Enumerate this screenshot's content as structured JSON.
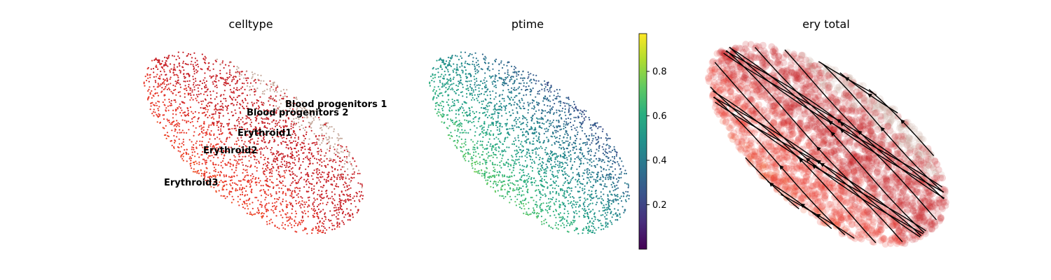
{
  "chart_data": [
    {
      "type": "scatter",
      "title": "celltype",
      "xlabel": "",
      "ylabel": "",
      "legend": "on data",
      "categories": [
        "Blood progenitors 1",
        "Blood progenitors 2",
        "Erythroid1",
        "Erythroid2",
        "Erythroid3"
      ],
      "category_colors": {
        "Blood progenitors 1": "#dfc8bd",
        "Blood progenitors 2": "#c5a99c",
        "Erythroid1": "#c72228",
        "Erythroid2": "#e8392b",
        "Erythroid3": "#ef4e22"
      },
      "labels": [
        "Blood progenitors 1",
        "Blood progenitors 2",
        "Erythroid1",
        "Erythroid2",
        "Erythroid3"
      ]
    },
    {
      "type": "scatter",
      "title": "ptime",
      "xlabel": "",
      "ylabel": "",
      "colormap": "viridis",
      "colorbar": {
        "min": 0.0,
        "max": 0.97,
        "ticks": [
          0.2,
          0.4,
          0.6,
          0.8
        ],
        "tick_labels": [
          "0.2",
          "0.4",
          "0.6",
          "0.8"
        ]
      }
    },
    {
      "type": "scatter",
      "title": "ery total",
      "xlabel": "",
      "ylabel": "",
      "overlay": "streamlines",
      "stream_color": "#000000"
    }
  ]
}
